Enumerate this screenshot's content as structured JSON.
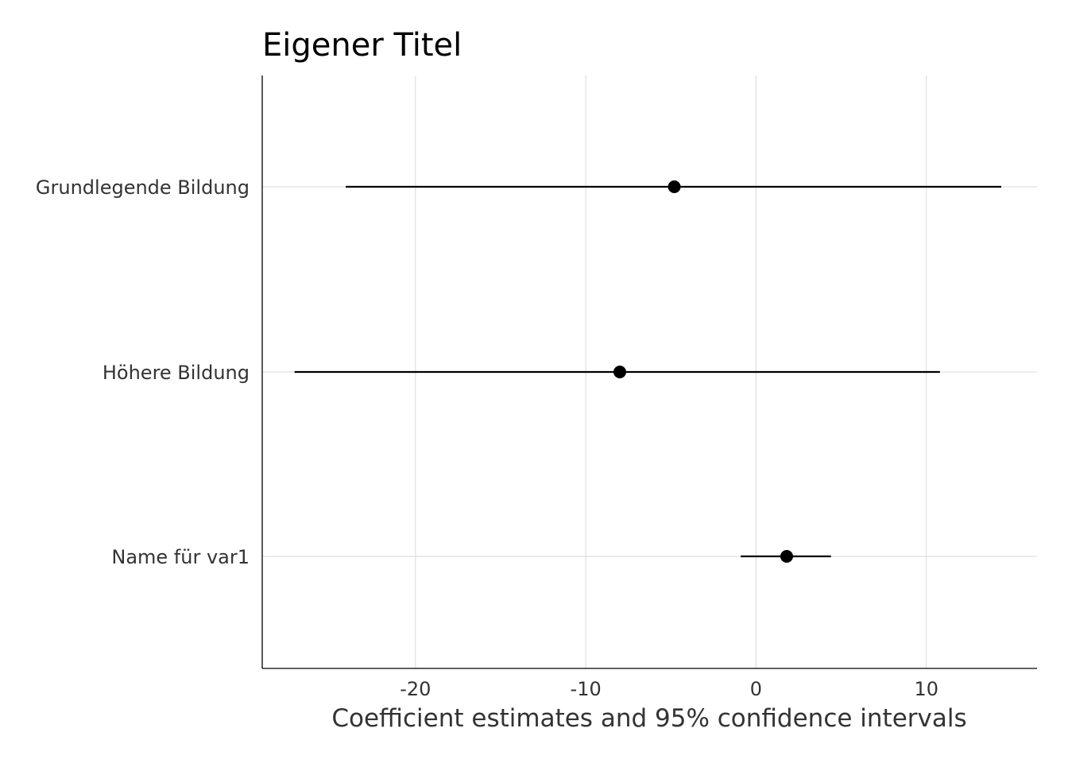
{
  "chart_data": {
    "type": "scatter",
    "subtype": "coefficient-plot",
    "title": "Eigener Titel",
    "xlabel": "Coefficient estimates and 95% confidence intervals",
    "ylabel": "",
    "xlim": [
      -29,
      16.5
    ],
    "xticks": [
      -20,
      -10,
      0,
      10
    ],
    "xtick_labels": [
      "-20",
      "-10",
      "0",
      "10"
    ],
    "grid": true,
    "legend": "none",
    "point_color": "#000000",
    "terms": [
      {
        "label": "Grundlegende Bildung",
        "estimate": -4.8,
        "ci_low": -24.1,
        "ci_high": 14.4
      },
      {
        "label": "Höhere Bildung",
        "estimate": -8.0,
        "ci_low": -27.1,
        "ci_high": 10.8
      },
      {
        "label": "Name für var1",
        "estimate": 1.8,
        "ci_low": -0.9,
        "ci_high": 4.4
      }
    ]
  }
}
